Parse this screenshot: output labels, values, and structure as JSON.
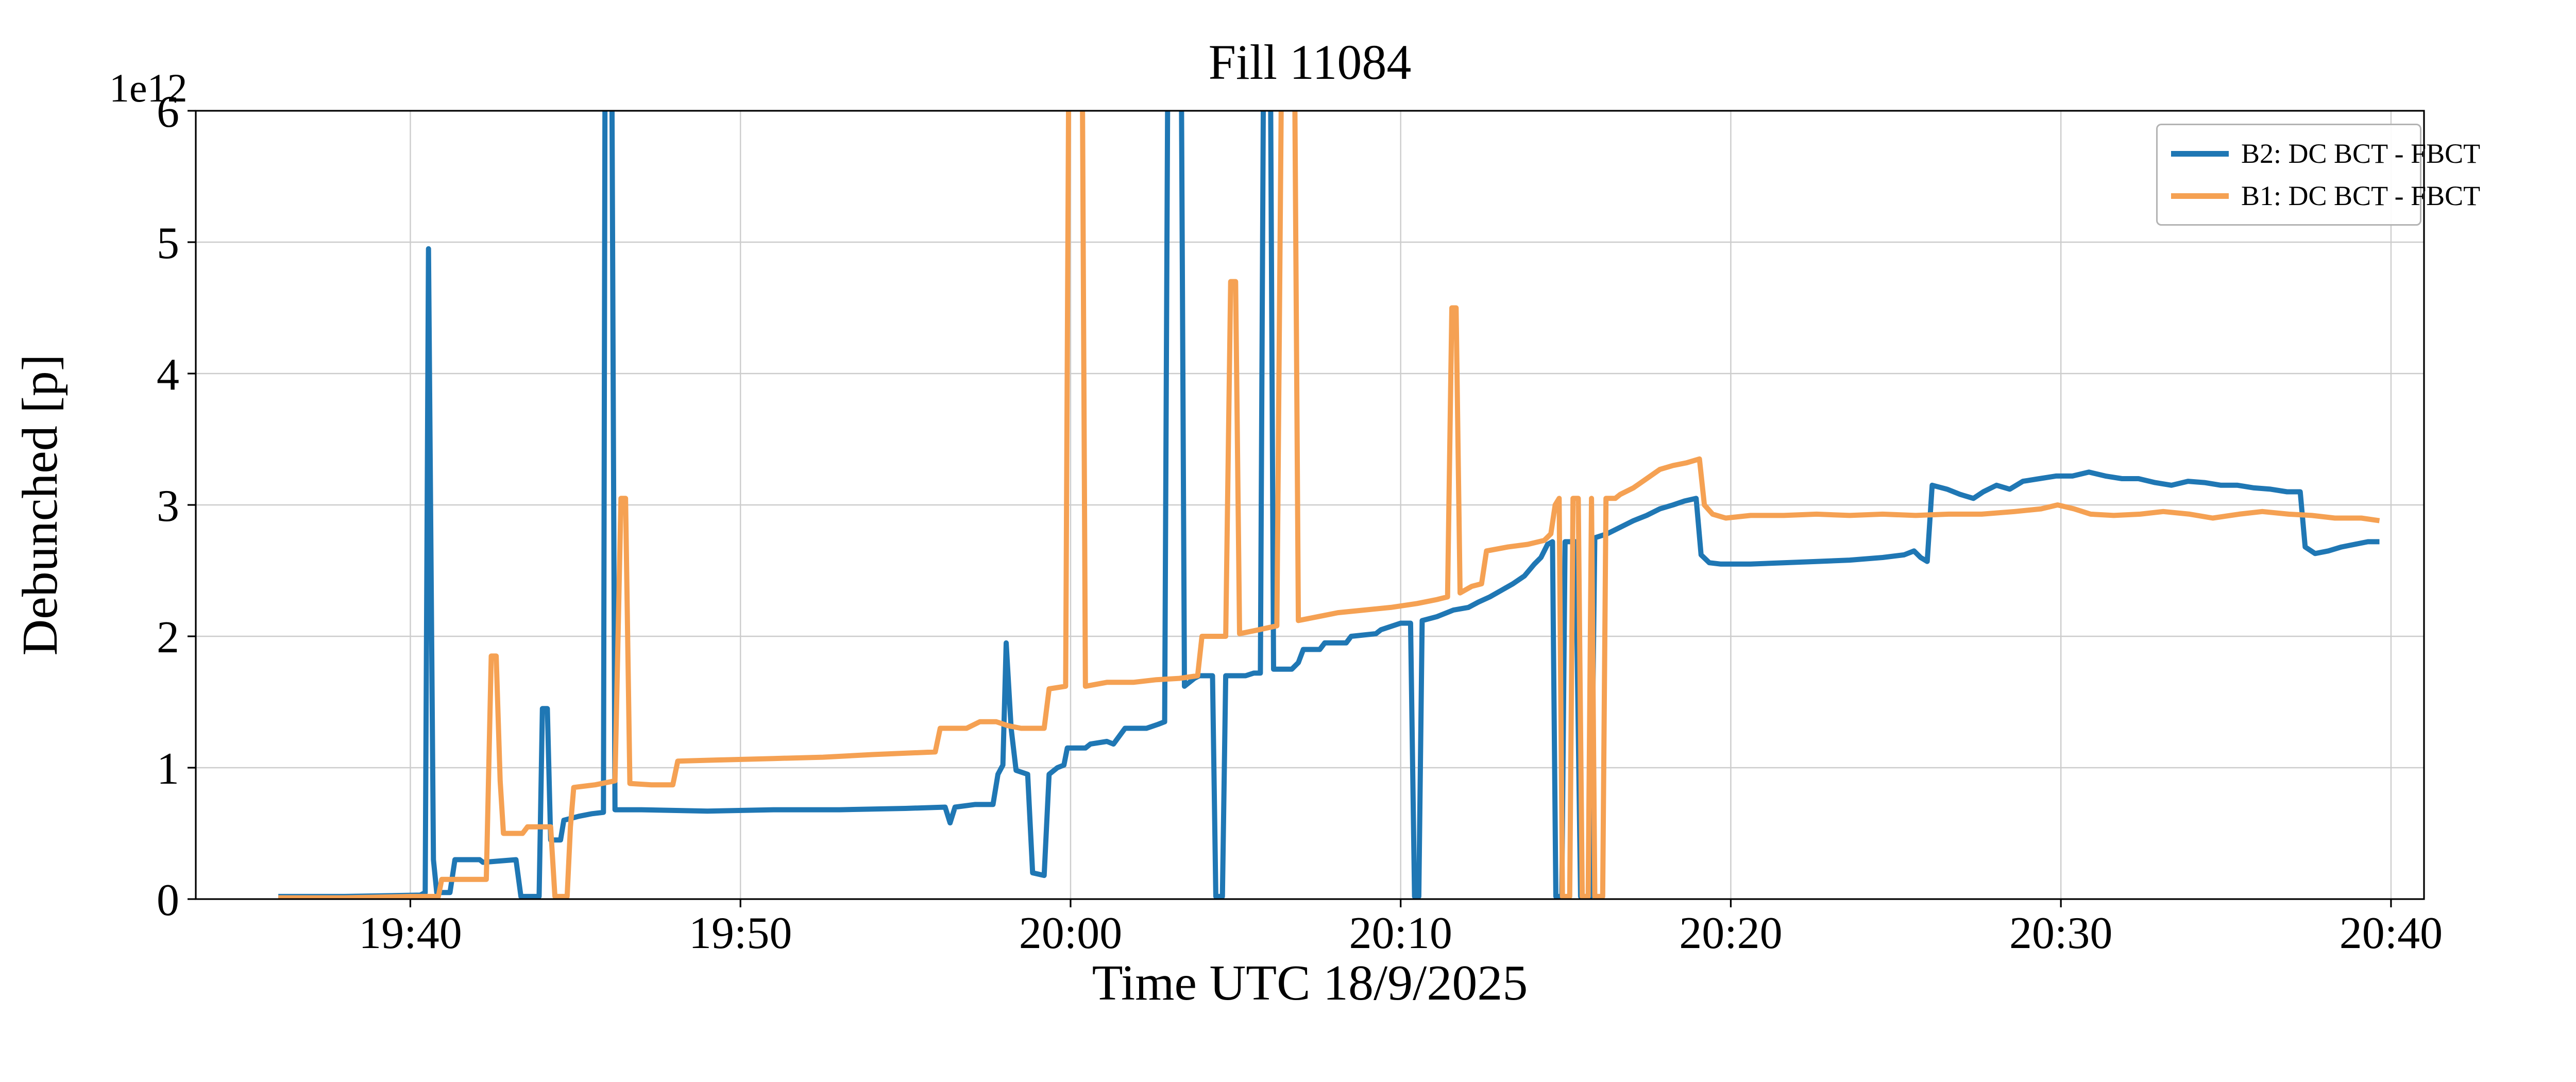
{
  "chart_data": {
    "type": "line",
    "title": "Fill 11084",
    "xlabel": "Time UTC 18/9/2025",
    "ylabel": "Debunched [p]",
    "y_offset_text": "1e12",
    "y_unit": "protons (values in units of 1e12)",
    "grid": true,
    "legend_position": "upper right",
    "xlim_minutes": [
      33.5,
      101
    ],
    "ylim": [
      0,
      6
    ],
    "x_ticks": [
      {
        "minutes": 40,
        "label": "19:40"
      },
      {
        "minutes": 50,
        "label": "19:50"
      },
      {
        "minutes": 60,
        "label": "20:00"
      },
      {
        "minutes": 70,
        "label": "20:10"
      },
      {
        "minutes": 80,
        "label": "20:20"
      },
      {
        "minutes": 90,
        "label": "20:30"
      },
      {
        "minutes": 100,
        "label": "20:40"
      }
    ],
    "y_ticks": [
      0,
      1,
      2,
      3,
      4,
      5,
      6
    ],
    "grid_color": "#cccccc",
    "axis_color": "#000000",
    "series": [
      {
        "name": "B2: DC BCT - FBCT",
        "color": "#1f77b4",
        "points": [
          [
            36,
            0.02
          ],
          [
            38,
            0.02
          ],
          [
            40.3,
            0.03
          ],
          [
            40.45,
            0.05
          ],
          [
            40.55,
            4.95
          ],
          [
            40.7,
            0.3
          ],
          [
            40.8,
            0.05
          ],
          [
            41.2,
            0.05
          ],
          [
            41.35,
            0.3
          ],
          [
            42.1,
            0.3
          ],
          [
            42.2,
            0.28
          ],
          [
            43.2,
            0.3
          ],
          [
            43.35,
            0.02
          ],
          [
            43.9,
            0.02
          ],
          [
            44.0,
            1.45
          ],
          [
            44.15,
            1.45
          ],
          [
            44.25,
            0.45
          ],
          [
            44.55,
            0.45
          ],
          [
            44.65,
            0.6
          ],
          [
            45.1,
            0.63
          ],
          [
            45.5,
            0.65
          ],
          [
            45.85,
            0.66
          ],
          [
            45.9,
            6.6
          ],
          [
            46.1,
            6.6
          ],
          [
            46.2,
            0.68
          ],
          [
            47,
            0.68
          ],
          [
            49,
            0.67
          ],
          [
            51,
            0.68
          ],
          [
            53,
            0.68
          ],
          [
            55,
            0.69
          ],
          [
            56.2,
            0.7
          ],
          [
            56.35,
            0.58
          ],
          [
            56.5,
            0.7
          ],
          [
            57.1,
            0.72
          ],
          [
            57.65,
            0.72
          ],
          [
            57.8,
            0.95
          ],
          [
            57.95,
            1.02
          ],
          [
            58.05,
            1.95
          ],
          [
            58.2,
            1.3
          ],
          [
            58.35,
            0.98
          ],
          [
            58.7,
            0.95
          ],
          [
            58.85,
            0.2
          ],
          [
            59.2,
            0.18
          ],
          [
            59.35,
            0.95
          ],
          [
            59.6,
            1.0
          ],
          [
            59.8,
            1.02
          ],
          [
            59.9,
            1.15
          ],
          [
            60.45,
            1.15
          ],
          [
            60.6,
            1.18
          ],
          [
            61.1,
            1.2
          ],
          [
            61.3,
            1.18
          ],
          [
            61.65,
            1.3
          ],
          [
            62.3,
            1.3
          ],
          [
            62.65,
            1.33
          ],
          [
            62.85,
            1.35
          ],
          [
            62.95,
            6.6
          ],
          [
            63.35,
            6.6
          ],
          [
            63.45,
            1.62
          ],
          [
            63.75,
            1.68
          ],
          [
            63.9,
            1.7
          ],
          [
            64.3,
            1.7
          ],
          [
            64.4,
            0.02
          ],
          [
            64.6,
            0.02
          ],
          [
            64.7,
            1.7
          ],
          [
            65.3,
            1.7
          ],
          [
            65.55,
            1.72
          ],
          [
            65.75,
            1.72
          ],
          [
            65.85,
            6.6
          ],
          [
            66.05,
            6.6
          ],
          [
            66.15,
            1.75
          ],
          [
            66.7,
            1.75
          ],
          [
            66.9,
            1.8
          ],
          [
            67.05,
            1.9
          ],
          [
            67.55,
            1.9
          ],
          [
            67.7,
            1.95
          ],
          [
            68.35,
            1.95
          ],
          [
            68.5,
            2.0
          ],
          [
            69.25,
            2.02
          ],
          [
            69.4,
            2.05
          ],
          [
            70.0,
            2.1
          ],
          [
            70.3,
            2.1
          ],
          [
            70.42,
            0.02
          ],
          [
            70.55,
            0.02
          ],
          [
            70.65,
            2.12
          ],
          [
            71.1,
            2.15
          ],
          [
            71.6,
            2.2
          ],
          [
            72.05,
            2.22
          ],
          [
            72.35,
            2.26
          ],
          [
            72.7,
            2.3
          ],
          [
            73.05,
            2.35
          ],
          [
            73.4,
            2.4
          ],
          [
            73.75,
            2.46
          ],
          [
            74.05,
            2.55
          ],
          [
            74.25,
            2.6
          ],
          [
            74.45,
            2.7
          ],
          [
            74.6,
            2.72
          ],
          [
            74.7,
            0.02
          ],
          [
            74.88,
            0.02
          ],
          [
            74.98,
            2.72
          ],
          [
            75.3,
            2.72
          ],
          [
            75.45,
            0.02
          ],
          [
            75.75,
            0.02
          ],
          [
            75.88,
            2.75
          ],
          [
            76.25,
            2.78
          ],
          [
            76.65,
            2.83
          ],
          [
            77.05,
            2.88
          ],
          [
            77.45,
            2.92
          ],
          [
            77.85,
            2.97
          ],
          [
            78.25,
            3.0
          ],
          [
            78.6,
            3.03
          ],
          [
            78.95,
            3.05
          ],
          [
            79.1,
            2.62
          ],
          [
            79.35,
            2.56
          ],
          [
            79.7,
            2.55
          ],
          [
            80.6,
            2.55
          ],
          [
            81.6,
            2.56
          ],
          [
            82.6,
            2.57
          ],
          [
            83.6,
            2.58
          ],
          [
            84.6,
            2.6
          ],
          [
            85.25,
            2.62
          ],
          [
            85.55,
            2.65
          ],
          [
            85.75,
            2.6
          ],
          [
            85.95,
            2.57
          ],
          [
            86.1,
            3.15
          ],
          [
            86.55,
            3.12
          ],
          [
            86.95,
            3.08
          ],
          [
            87.35,
            3.05
          ],
          [
            87.65,
            3.1
          ],
          [
            88.05,
            3.15
          ],
          [
            88.45,
            3.12
          ],
          [
            88.85,
            3.18
          ],
          [
            89.35,
            3.2
          ],
          [
            89.85,
            3.22
          ],
          [
            90.35,
            3.22
          ],
          [
            90.85,
            3.25
          ],
          [
            91.35,
            3.22
          ],
          [
            91.85,
            3.2
          ],
          [
            92.35,
            3.2
          ],
          [
            92.85,
            3.17
          ],
          [
            93.35,
            3.15
          ],
          [
            93.85,
            3.18
          ],
          [
            94.35,
            3.17
          ],
          [
            94.85,
            3.15
          ],
          [
            95.35,
            3.15
          ],
          [
            95.85,
            3.13
          ],
          [
            96.35,
            3.12
          ],
          [
            96.85,
            3.1
          ],
          [
            97.25,
            3.1
          ],
          [
            97.4,
            2.68
          ],
          [
            97.7,
            2.63
          ],
          [
            98.1,
            2.65
          ],
          [
            98.5,
            2.68
          ],
          [
            98.9,
            2.7
          ],
          [
            99.3,
            2.72
          ],
          [
            99.65,
            2.72
          ]
        ]
      },
      {
        "name": "B1: DC BCT - FBCT",
        "color": "#f5a153",
        "points": [
          [
            36,
            0.01
          ],
          [
            38,
            0.01
          ],
          [
            40,
            0.02
          ],
          [
            40.85,
            0.02
          ],
          [
            40.95,
            0.15
          ],
          [
            42.3,
            0.15
          ],
          [
            42.45,
            1.85
          ],
          [
            42.6,
            1.85
          ],
          [
            42.72,
            0.9
          ],
          [
            42.82,
            0.5
          ],
          [
            43.4,
            0.5
          ],
          [
            43.55,
            0.55
          ],
          [
            44.25,
            0.55
          ],
          [
            44.38,
            0.02
          ],
          [
            44.75,
            0.02
          ],
          [
            44.85,
            0.55
          ],
          [
            44.95,
            0.85
          ],
          [
            45.6,
            0.87
          ],
          [
            46.2,
            0.9
          ],
          [
            46.38,
            3.05
          ],
          [
            46.52,
            3.05
          ],
          [
            46.65,
            0.88
          ],
          [
            47.3,
            0.87
          ],
          [
            47.95,
            0.87
          ],
          [
            48.1,
            1.05
          ],
          [
            49.5,
            1.06
          ],
          [
            51,
            1.07
          ],
          [
            52.5,
            1.08
          ],
          [
            54,
            1.1
          ],
          [
            55.9,
            1.12
          ],
          [
            56.05,
            1.3
          ],
          [
            56.85,
            1.3
          ],
          [
            57.25,
            1.35
          ],
          [
            57.75,
            1.35
          ],
          [
            58.1,
            1.32
          ],
          [
            58.5,
            1.3
          ],
          [
            59.2,
            1.3
          ],
          [
            59.35,
            1.6
          ],
          [
            59.85,
            1.62
          ],
          [
            59.95,
            6.6
          ],
          [
            60.35,
            6.6
          ],
          [
            60.45,
            1.62
          ],
          [
            61.1,
            1.65
          ],
          [
            61.9,
            1.65
          ],
          [
            62.6,
            1.67
          ],
          [
            63.3,
            1.68
          ],
          [
            63.85,
            1.7
          ],
          [
            63.98,
            2.0
          ],
          [
            64.7,
            2.0
          ],
          [
            64.85,
            4.7
          ],
          [
            65.0,
            4.7
          ],
          [
            65.12,
            2.02
          ],
          [
            65.7,
            2.05
          ],
          [
            66.25,
            2.08
          ],
          [
            66.4,
            6.6
          ],
          [
            66.78,
            6.6
          ],
          [
            66.9,
            2.12
          ],
          [
            67.5,
            2.15
          ],
          [
            68.1,
            2.18
          ],
          [
            68.9,
            2.2
          ],
          [
            69.7,
            2.22
          ],
          [
            70.5,
            2.25
          ],
          [
            71.1,
            2.28
          ],
          [
            71.42,
            2.3
          ],
          [
            71.55,
            4.5
          ],
          [
            71.68,
            4.5
          ],
          [
            71.8,
            2.33
          ],
          [
            72.15,
            2.38
          ],
          [
            72.45,
            2.4
          ],
          [
            72.6,
            2.65
          ],
          [
            73.25,
            2.68
          ],
          [
            73.85,
            2.7
          ],
          [
            74.35,
            2.73
          ],
          [
            74.55,
            2.78
          ],
          [
            74.68,
            3.0
          ],
          [
            74.8,
            3.05
          ],
          [
            74.9,
            0.02
          ],
          [
            75.12,
            0.02
          ],
          [
            75.22,
            3.05
          ],
          [
            75.38,
            3.05
          ],
          [
            75.5,
            0.02
          ],
          [
            75.68,
            0.02
          ],
          [
            75.78,
            3.05
          ],
          [
            75.88,
            0.02
          ],
          [
            76.12,
            0.02
          ],
          [
            76.22,
            3.05
          ],
          [
            76.5,
            3.05
          ],
          [
            76.65,
            3.08
          ],
          [
            77.05,
            3.13
          ],
          [
            77.45,
            3.2
          ],
          [
            77.85,
            3.27
          ],
          [
            78.25,
            3.3
          ],
          [
            78.65,
            3.32
          ],
          [
            79.05,
            3.35
          ],
          [
            79.2,
            3.0
          ],
          [
            79.45,
            2.93
          ],
          [
            79.85,
            2.9
          ],
          [
            80.6,
            2.92
          ],
          [
            81.6,
            2.92
          ],
          [
            82.6,
            2.93
          ],
          [
            83.6,
            2.92
          ],
          [
            84.6,
            2.93
          ],
          [
            85.6,
            2.92
          ],
          [
            86.6,
            2.93
          ],
          [
            87.6,
            2.93
          ],
          [
            88.6,
            2.95
          ],
          [
            89.4,
            2.97
          ],
          [
            89.9,
            3.0
          ],
          [
            90.4,
            2.97
          ],
          [
            90.9,
            2.93
          ],
          [
            91.6,
            2.92
          ],
          [
            92.4,
            2.93
          ],
          [
            93.1,
            2.95
          ],
          [
            93.9,
            2.93
          ],
          [
            94.6,
            2.9
          ],
          [
            95.4,
            2.93
          ],
          [
            96.1,
            2.95
          ],
          [
            96.9,
            2.93
          ],
          [
            97.6,
            2.92
          ],
          [
            98.3,
            2.9
          ],
          [
            99.1,
            2.9
          ],
          [
            99.65,
            2.88
          ]
        ]
      }
    ]
  }
}
